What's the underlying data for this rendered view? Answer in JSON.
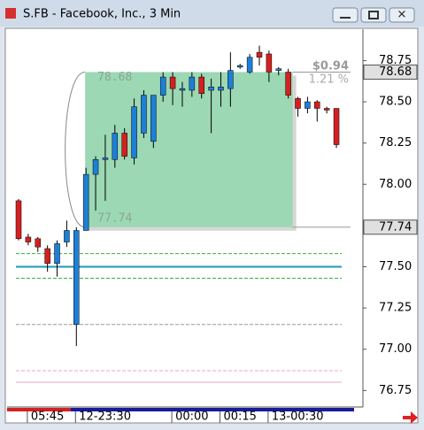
{
  "chart_data": {
    "type": "candlestick",
    "title": "S.FB - Facebook, Inc., 3 Min",
    "categories": [
      null,
      "05:45",
      null,
      null,
      null,
      null,
      "12-23:30",
      null,
      null,
      null,
      null,
      null,
      null,
      null,
      null,
      null,
      "00:00",
      null,
      null,
      null,
      null,
      "00:15",
      null,
      null,
      null,
      null,
      "13-00:30",
      null,
      null,
      null,
      null,
      null,
      null,
      null
    ],
    "open": [
      77.9,
      77.68,
      77.67,
      77.61,
      77.52,
      77.65,
      77.15,
      77.72,
      78.06,
      78.15,
      78.15,
      78.31,
      78.16,
      78.31,
      78.26,
      78.54,
      78.65,
      78.57,
      78.57,
      78.65,
      78.57,
      78.57,
      78.58,
      78.71,
      78.68,
      78.8,
      78.79,
      78.69,
      78.68,
      78.52,
      78.46,
      78.5,
      78.46,
      78.46
    ],
    "high": [
      77.91,
      77.7,
      77.68,
      77.63,
      77.66,
      77.78,
      77.74,
      78.1,
      78.17,
      78.3,
      78.36,
      78.34,
      78.52,
      78.57,
      78.54,
      78.68,
      78.68,
      78.62,
      78.68,
      78.67,
      78.64,
      78.68,
      78.8,
      78.73,
      78.79,
      78.84,
      78.81,
      78.71,
      78.7,
      78.53,
      78.53,
      78.51,
      78.47,
      78.46
    ],
    "low": [
      77.66,
      77.63,
      77.59,
      77.47,
      77.44,
      77.62,
      77.02,
      77.72,
      77.84,
      77.9,
      78.1,
      78.15,
      78.12,
      78.28,
      78.22,
      78.5,
      78.48,
      78.47,
      78.53,
      78.52,
      78.31,
      78.47,
      78.47,
      78.7,
      78.67,
      78.72,
      78.62,
      78.66,
      78.52,
      78.41,
      78.43,
      78.38,
      78.43,
      78.22
    ],
    "close": [
      77.67,
      77.65,
      77.62,
      77.52,
      77.64,
      77.72,
      77.72,
      78.06,
      78.15,
      78.16,
      78.31,
      78.17,
      78.47,
      78.54,
      78.54,
      78.65,
      78.58,
      78.58,
      78.65,
      78.55,
      78.59,
      78.59,
      78.69,
      78.72,
      78.77,
      78.77,
      78.68,
      78.7,
      78.54,
      78.46,
      78.5,
      78.46,
      78.45,
      78.24
    ],
    "up_color": "#1e7fd6",
    "down_color": "#d42020",
    "ylim": [
      76.65,
      78.94
    ],
    "yticks": [
      76.75,
      {
        "value": 77,
        "label": "77.00"
      },
      77.25,
      {
        "value": 77.5,
        "label": "77.50"
      },
      {
        "value": 78,
        "label": "78.00"
      },
      78.25,
      {
        "value": 78.5,
        "label": "78.50"
      },
      78.75
    ],
    "price_markers": [
      78.68,
      77.74
    ],
    "levels": [
      {
        "value": 77.58,
        "color": "#3cb043",
        "dashed": true
      },
      {
        "value": 77.5,
        "color": "#1a9bb0",
        "dashed": false
      },
      {
        "value": 77.43,
        "color": "#3cb043",
        "dashed": true
      },
      {
        "value": 77.15,
        "color": "#999999",
        "dashed": true
      },
      {
        "value": 76.87,
        "color": "#f0a0c8",
        "dashed": true
      },
      {
        "value": 76.8,
        "color": "#f0a0c8",
        "dashed": false
      }
    ],
    "measure": {
      "high": 78.68,
      "low": 77.74,
      "change": {
        "value": 0.94,
        "label": "$0.94"
      },
      "percent": {
        "value": 1.21,
        "label": "1.21 %"
      }
    }
  }
}
